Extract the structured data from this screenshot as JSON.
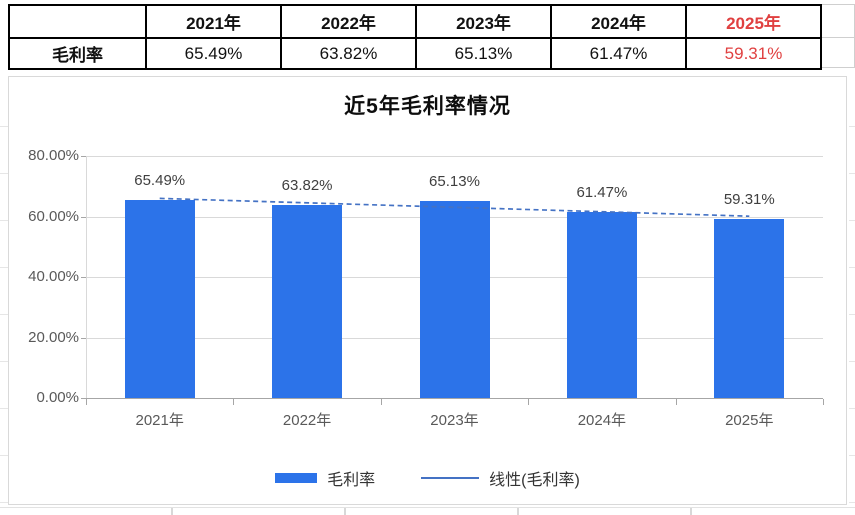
{
  "table": {
    "corner": "",
    "row_label": "毛利率",
    "columns": [
      "2021年",
      "2022年",
      "2023年",
      "2024年",
      "2025年"
    ],
    "values": [
      "65.49%",
      "63.82%",
      "65.13%",
      "61.47%",
      "59.31%"
    ],
    "highlight_column": "2025年",
    "highlight_color": "#e04040"
  },
  "chart_data": {
    "type": "bar",
    "title": "近5年毛利率情况",
    "categories": [
      "2021年",
      "2022年",
      "2023年",
      "2024年",
      "2025年"
    ],
    "series": [
      {
        "name": "毛利率",
        "values": [
          65.49,
          63.82,
          65.13,
          61.47,
          59.31
        ]
      }
    ],
    "data_labels": [
      "65.49%",
      "63.82%",
      "65.13%",
      "61.47%",
      "59.31%"
    ],
    "trendline": {
      "name": "线性(毛利率)",
      "type": "linear"
    },
    "ylim": [
      0,
      80
    ],
    "ytick_step": 20,
    "ytick_labels": [
      "0.00%",
      "20.00%",
      "40.00%",
      "60.00%",
      "80.00%"
    ],
    "xlabel": "",
    "ylabel": "",
    "grid": true,
    "legend_position": "bottom",
    "bar_color": "#2c73e9",
    "trend_color": "#4472c4",
    "grid_color": "#d9d9d9"
  }
}
